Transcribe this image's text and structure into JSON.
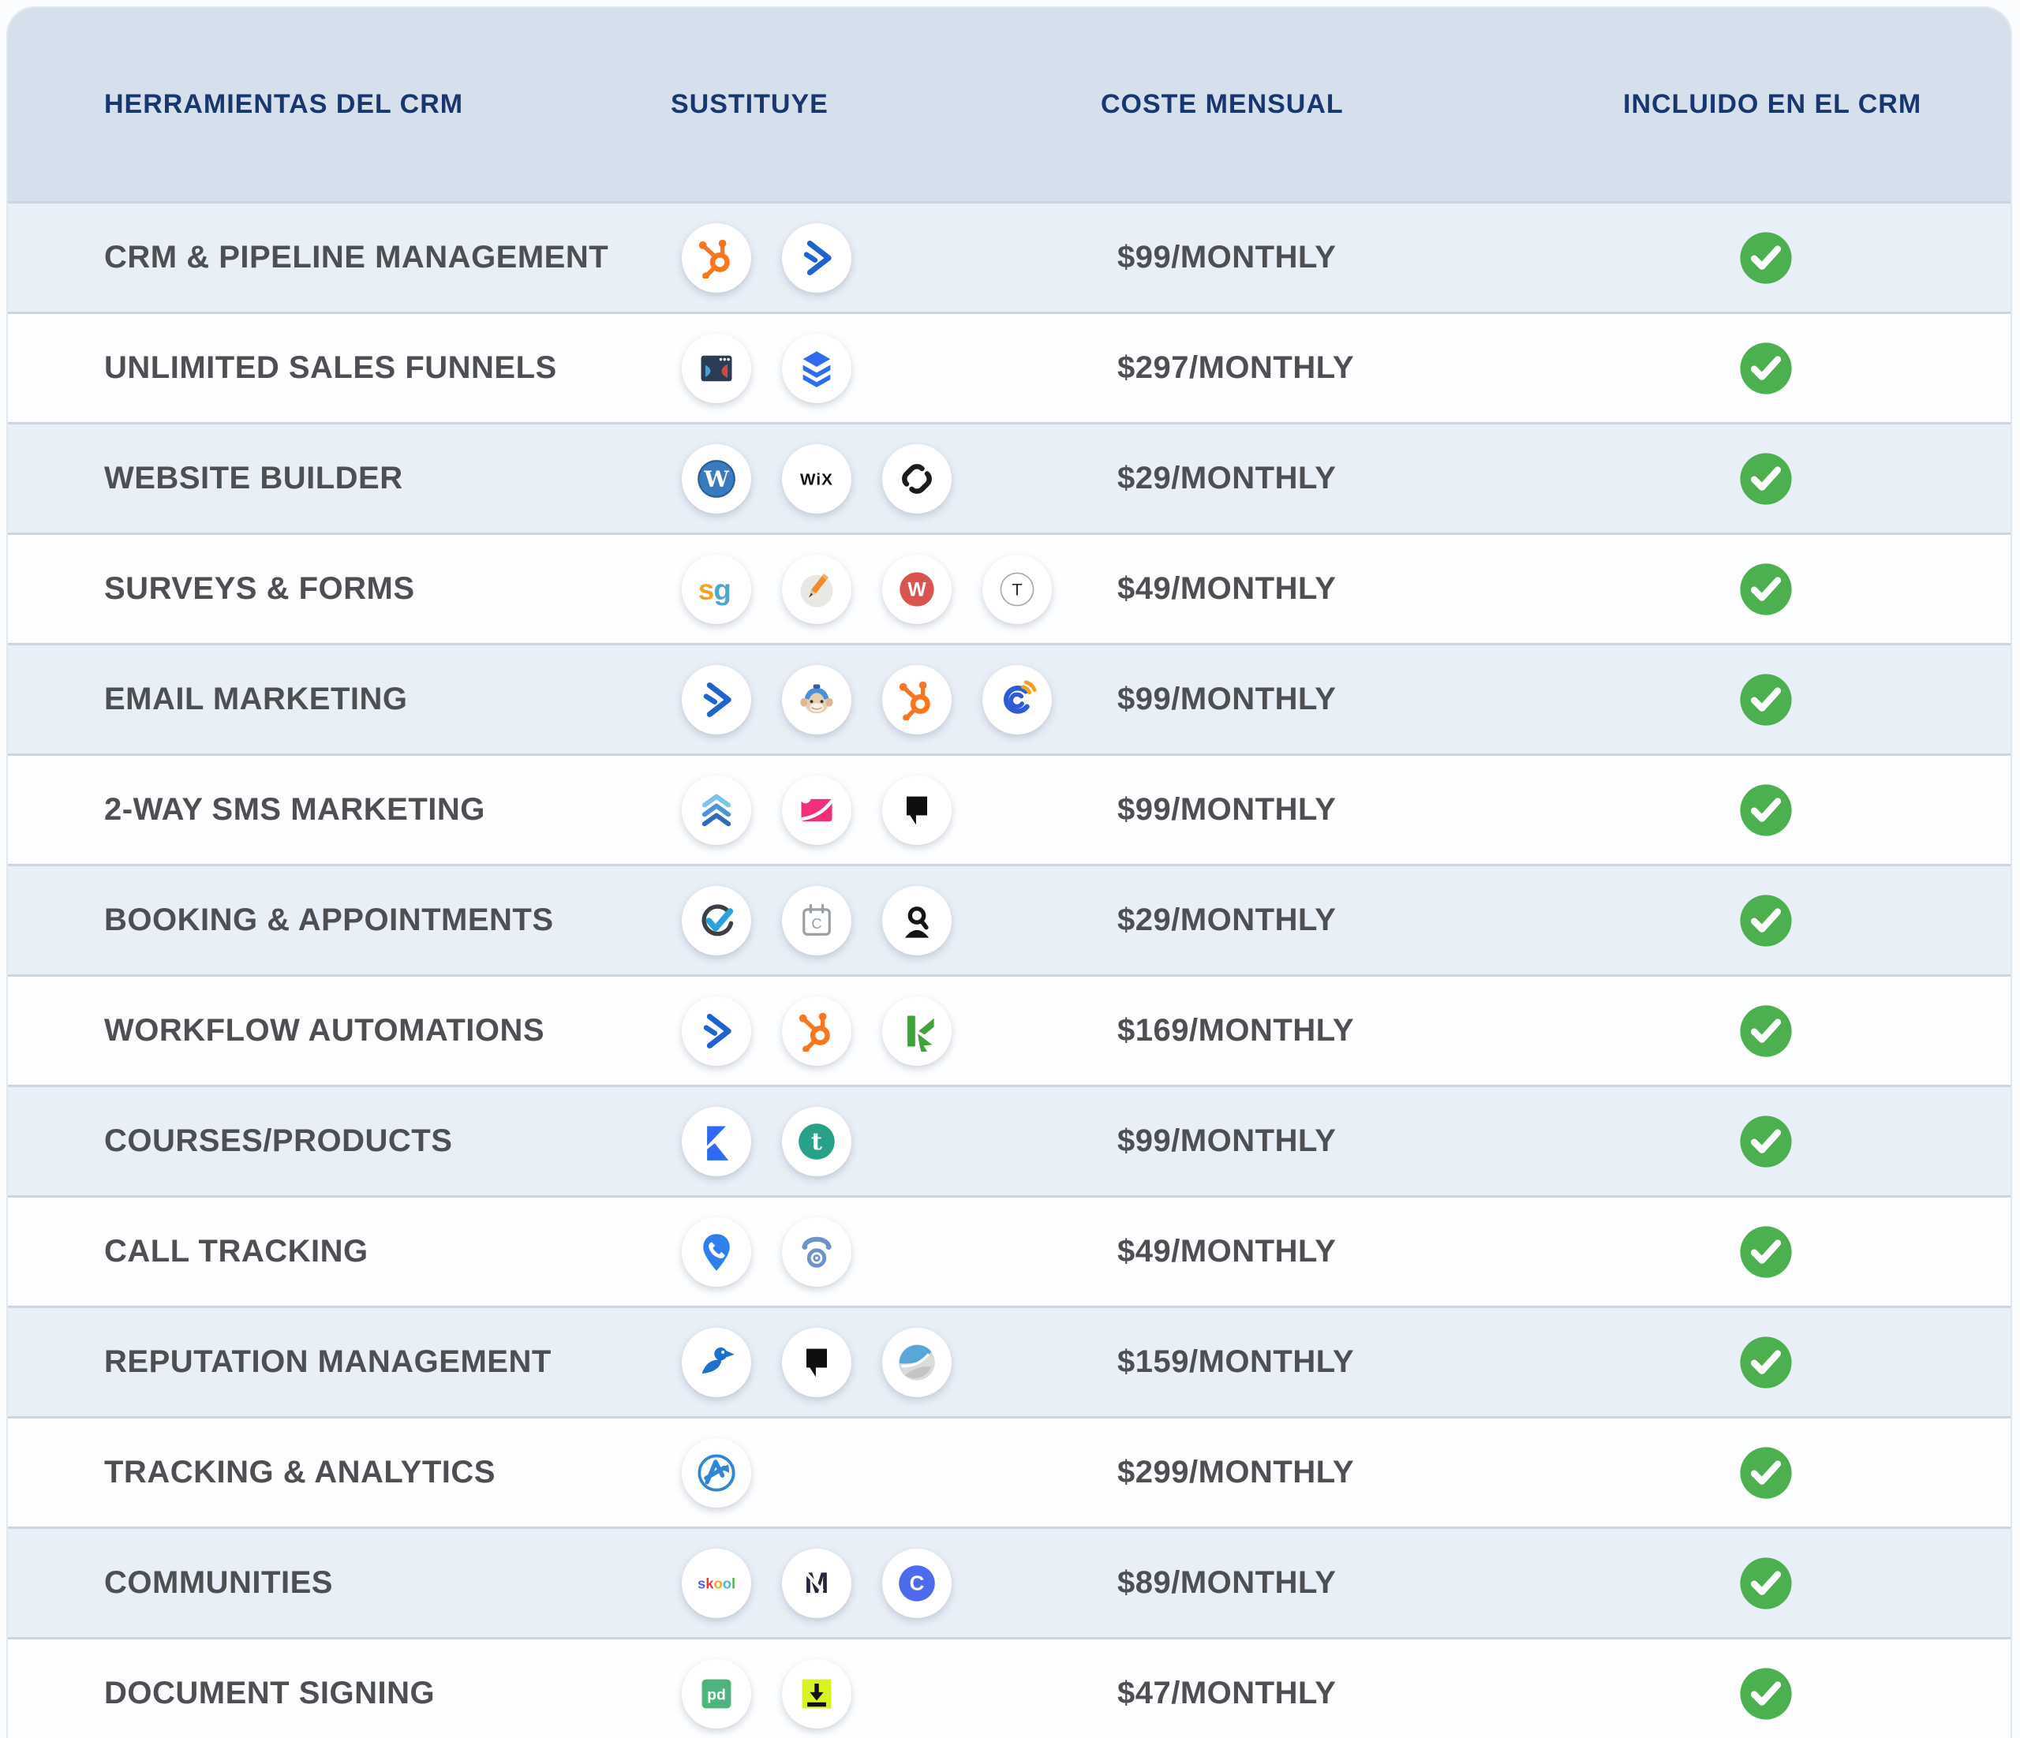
{
  "table": {
    "columns": [
      {
        "label": "HERRAMIENTAS DEL CRM"
      },
      {
        "label": "SUSTITUYE"
      },
      {
        "label": "COSTE MENSUAL"
      },
      {
        "label": "INCLUIDO EN EL CRM"
      }
    ],
    "rows": [
      {
        "tool": "CRM & PIPELINE MANAGEMENT",
        "icons": [
          "hubspot-icon",
          "activecampaign-icon"
        ],
        "cost": "$99/MONTHLY",
        "included": true
      },
      {
        "tool": "UNLIMITED SALES FUNNELS",
        "icons": [
          "clickfunnels-icon",
          "leadpages-icon"
        ],
        "cost": "$297/MONTHLY",
        "included": true
      },
      {
        "tool": "WEBSITE BUILDER",
        "icons": [
          "wordpress-icon",
          "wix-icon",
          "squarespace-icon"
        ],
        "cost": "$29/MONTHLY",
        "included": true
      },
      {
        "tool": "SURVEYS & FORMS",
        "icons": [
          "surveygizmo-icon",
          "pencil-form-icon",
          "wufoo-icon",
          "typeform-icon"
        ],
        "cost": "$49/MONTHLY",
        "included": true
      },
      {
        "tool": "EMAIL MARKETING",
        "icons": [
          "activecampaign-icon",
          "mailchimp-icon",
          "hubspot-icon",
          "constantcontact-icon"
        ],
        "cost": "$99/MONTHLY",
        "included": true
      },
      {
        "tool": "2-WAY SMS MARKETING",
        "icons": [
          "chevrons-up-icon",
          "pink-envelope-icon",
          "podium-icon"
        ],
        "cost": "$99/MONTHLY",
        "included": true
      },
      {
        "tool": "BOOKING & APPOINTMENTS",
        "icons": [
          "check-circle-icon",
          "calendar-icon",
          "acuity-icon"
        ],
        "cost": "$29/MONTHLY",
        "included": true
      },
      {
        "tool": "WORKFLOW AUTOMATIONS",
        "icons": [
          "activecampaign-icon",
          "hubspot-icon",
          "keap-icon"
        ],
        "cost": "$169/MONTHLY",
        "included": true
      },
      {
        "tool": "COURSES/PRODUCTS",
        "icons": [
          "kajabi-icon",
          "teachable-icon"
        ],
        "cost": "$99/MONTHLY",
        "included": true
      },
      {
        "tool": "CALL TRACKING",
        "icons": [
          "callrail-icon",
          "rotary-phone-icon"
        ],
        "cost": "$49/MONTHLY",
        "included": true
      },
      {
        "tool": "REPUTATION MANAGEMENT",
        "icons": [
          "birdeye-icon",
          "podium-icon",
          "swirl-icon"
        ],
        "cost": "$159/MONTHLY",
        "included": true
      },
      {
        "tool": "TRACKING & ANALYTICS",
        "icons": [
          "agencyanalytics-icon"
        ],
        "cost": "$299/MONTHLY",
        "included": true
      },
      {
        "tool": "COMMUNITIES",
        "icons": [
          "skool-icon",
          "mightynetworks-icon",
          "circle-icon"
        ],
        "cost": "$89/MONTHLY",
        "included": true
      },
      {
        "tool": "DOCUMENT SIGNING",
        "icons": [
          "pandadoc-icon",
          "sign-arrow-icon"
        ],
        "cost": "$47/MONTHLY",
        "included": true
      }
    ]
  },
  "colors": {
    "header_bg": "#d6e0ec",
    "row_alt_bg": "#e9eff7",
    "row_bg": "#fdfeff",
    "divider": "#ccd6e2",
    "header_text": "#17376e",
    "row_text": "#4d4f52",
    "check_green": "#4caf50"
  },
  "icons": {
    "included_check": "white check in green circle"
  }
}
